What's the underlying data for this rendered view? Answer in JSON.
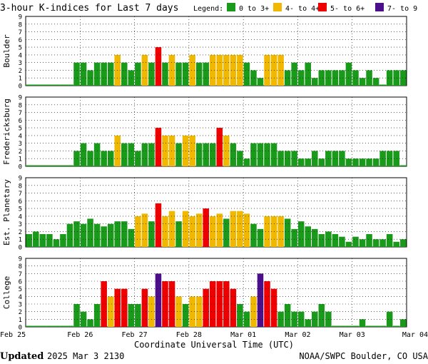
{
  "title": "3-hour K-indices for Last 7 days",
  "legend": {
    "label": "Legend:",
    "items": [
      {
        "label": "0 to 3+",
        "color": "#1a9a1a"
      },
      {
        "label": "4- to 4+",
        "color": "#f0b800"
      },
      {
        "label": "5- to 6+",
        "color": "#ee0000"
      },
      {
        "label": "7- to 9",
        "color": "#4b0f8c"
      }
    ]
  },
  "x_axis": {
    "label": "Coordinate Universal Time (UTC)",
    "ticks": [
      "Feb 25",
      "Feb 26",
      "Feb 27",
      "Feb 28",
      "Mar 01",
      "Mar 02",
      "Mar 03",
      "Mar 04"
    ]
  },
  "footer": {
    "updated_label": "Updated",
    "updated_value": "2025 Mar  3 2130",
    "source": "NOAA/SWPC Boulder, CO USA"
  },
  "chart_data": [
    {
      "type": "bar",
      "ylabel": "Boulder",
      "ylim": [
        0,
        9
      ],
      "yticks": [
        0,
        1,
        2,
        3,
        4,
        5,
        6,
        7,
        8,
        9
      ],
      "grid": true,
      "values": [
        0,
        0,
        0,
        0,
        0,
        0,
        0,
        3,
        3,
        2,
        3,
        3,
        3,
        4,
        3,
        2,
        3,
        4,
        3,
        5,
        3,
        4,
        3,
        3,
        4,
        3,
        3,
        4,
        4,
        4,
        4,
        4,
        3,
        2,
        1,
        4,
        4,
        4,
        2,
        3,
        2,
        3,
        1,
        2,
        2,
        2,
        2,
        3,
        2,
        1,
        2,
        1,
        0,
        2,
        2,
        2,
        2,
        0
      ]
    },
    {
      "type": "bar",
      "ylabel": "Fredericksburg",
      "ylim": [
        0,
        9
      ],
      "yticks": [
        0,
        1,
        2,
        3,
        4,
        5,
        6,
        7,
        8,
        9
      ],
      "grid": true,
      "values": [
        0,
        0,
        0,
        0,
        0,
        0,
        0,
        2,
        3,
        2,
        3,
        2,
        2,
        4,
        3,
        3,
        2,
        3,
        3,
        5,
        4,
        4,
        3,
        4,
        4,
        3,
        3,
        3,
        5,
        4,
        3,
        2,
        1,
        3,
        3,
        3,
        3,
        2,
        2,
        2,
        1,
        1,
        2,
        1,
        2,
        2,
        2,
        1,
        1,
        1,
        1,
        1,
        2,
        2,
        2,
        0
      ]
    },
    {
      "type": "bar",
      "ylabel": "Est. Planetary",
      "ylim": [
        0,
        9
      ],
      "yticks": [
        0,
        1,
        2,
        3,
        4,
        5,
        6,
        7,
        8,
        9
      ],
      "grid": true,
      "values": [
        1.67,
        2,
        1.67,
        1.67,
        1,
        1.67,
        3,
        3.33,
        3,
        3.67,
        3,
        2.67,
        3,
        3.33,
        3.33,
        2.33,
        4,
        4.33,
        3.33,
        5.67,
        4,
        4.67,
        3.33,
        4.67,
        4,
        4.33,
        5,
        4,
        4.33,
        3.67,
        4.67,
        4.67,
        4.33,
        3,
        2.33,
        4,
        4,
        4,
        3.67,
        2.33,
        3.33,
        2.67,
        2.33,
        1.67,
        2,
        1.67,
        1.33,
        0.67,
        1.33,
        1,
        1.67,
        1,
        1,
        1.67,
        0.67,
        1,
        1.33
      ]
    },
    {
      "type": "bar",
      "ylabel": "College",
      "ylim": [
        0,
        9
      ],
      "yticks": [
        0,
        1,
        2,
        3,
        4,
        5,
        6,
        7,
        8,
        9
      ],
      "grid": true,
      "values": [
        0,
        0,
        0,
        0,
        0,
        0,
        0,
        3,
        2,
        1,
        3,
        6,
        4,
        5,
        5,
        3,
        3,
        5,
        4,
        7,
        6,
        6,
        4,
        3,
        4,
        4,
        5,
        6,
        6,
        6,
        5,
        3,
        2,
        4,
        7,
        6,
        5,
        2,
        3,
        2,
        2,
        1,
        2,
        3,
        2,
        0,
        0,
        0,
        0,
        1,
        0,
        0,
        0,
        2,
        0,
        1,
        1,
        0
      ]
    }
  ]
}
